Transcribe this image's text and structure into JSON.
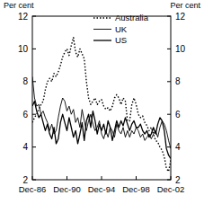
{
  "chart_data": {
    "type": "line",
    "y_label": "Per cent",
    "y2_label": "Per cent",
    "categories": [
      "Dec-86",
      null,
      null,
      null,
      null,
      null,
      null,
      null,
      null,
      null,
      null,
      null,
      null,
      null,
      null,
      null,
      "Dec-90",
      null,
      null,
      null,
      null,
      null,
      null,
      null,
      null,
      null,
      null,
      null,
      null,
      null,
      null,
      null,
      "Dec-94",
      null,
      null,
      null,
      null,
      null,
      null,
      null,
      null,
      null,
      null,
      null,
      null,
      null,
      null,
      null,
      "Dec-98",
      null,
      null,
      null,
      null,
      null,
      null,
      null,
      null,
      null,
      null,
      null,
      null,
      null,
      null,
      null,
      "Dec-02"
    ],
    "series": [
      {
        "name": "Australia",
        "color": "#000000",
        "line_style": "dotted",
        "values": [
          5.5,
          5.8,
          6.0,
          6.3,
          6.6,
          6.8,
          7.5,
          8.0,
          8.2,
          8.0,
          8.5,
          8.3,
          8.6,
          9.0,
          9.5,
          9.8,
          10.0,
          9.6,
          10.2,
          10.7,
          9.8,
          9.5,
          10.0,
          9.7,
          9.4,
          8.0,
          7.0,
          6.6,
          6.8,
          7.0,
          6.6,
          6.8,
          6.9,
          6.5,
          6.3,
          6.4,
          6.2,
          6.5,
          7.0,
          7.2,
          7.0,
          6.6,
          7.0,
          6.8,
          5.6,
          5.6,
          6.6,
          7.0,
          6.6,
          6.0,
          5.8,
          5.9,
          5.5,
          5.3,
          5.0,
          5.2,
          4.8,
          4.4,
          4.3,
          4.0,
          3.8,
          3.4,
          2.7,
          2.5,
          3.2
        ]
      },
      {
        "name": "UK",
        "color": "#000000",
        "line_style": "solid",
        "values": [
          8.3,
          7.0,
          6.5,
          6.6,
          6.0,
          6.2,
          5.8,
          5.5,
          5.0,
          5.4,
          4.8,
          5.0,
          5.8,
          6.5,
          7.0,
          6.8,
          6.2,
          6.5,
          6.0,
          6.3,
          5.5,
          5.8,
          5.2,
          6.3,
          5.6,
          5.0,
          5.6,
          6.0,
          5.4,
          5.0,
          5.2,
          5.6,
          4.8,
          4.5,
          5.0,
          4.6,
          5.2,
          5.0,
          4.6,
          5.4,
          5.0,
          4.8,
          5.2,
          4.6,
          5.0,
          4.6,
          5.0,
          4.8,
          5.2,
          5.0,
          4.6,
          4.8,
          4.4,
          4.6,
          4.8,
          4.5,
          4.8,
          5.0,
          4.6,
          5.2,
          5.6,
          5.4,
          5.0,
          4.4,
          3.9
        ]
      },
      {
        "name": "US",
        "color": "#000000",
        "line_style": "solid",
        "values": [
          6.5,
          6.8,
          6.2,
          5.8,
          6.0,
          5.5,
          5.0,
          5.4,
          4.8,
          4.5,
          5.2,
          4.2,
          4.5,
          5.5,
          6.0,
          5.5,
          5.0,
          5.8,
          5.2,
          4.6,
          5.0,
          4.2,
          4.8,
          5.5,
          4.4,
          5.6,
          6.0,
          5.2,
          6.2,
          5.6,
          4.8,
          5.4,
          5.0,
          5.4,
          4.8,
          5.6,
          5.2,
          4.4,
          5.0,
          5.6,
          5.2,
          5.6,
          5.3,
          5.8,
          5.4,
          5.0,
          5.4,
          5.6,
          5.2,
          5.2,
          5.4,
          5.0,
          4.8,
          5.0,
          4.6,
          4.8,
          5.2,
          4.8,
          5.4,
          5.8,
          5.6,
          5.0,
          3.9,
          3.5,
          3.3
        ]
      }
    ],
    "ylim": [
      2,
      12
    ],
    "yticks": [
      2,
      4,
      6,
      8,
      10,
      12
    ],
    "y2lim": [
      2,
      12
    ],
    "y2ticks": [
      2,
      4,
      6,
      8,
      10,
      12
    ],
    "legend": "top-right"
  }
}
